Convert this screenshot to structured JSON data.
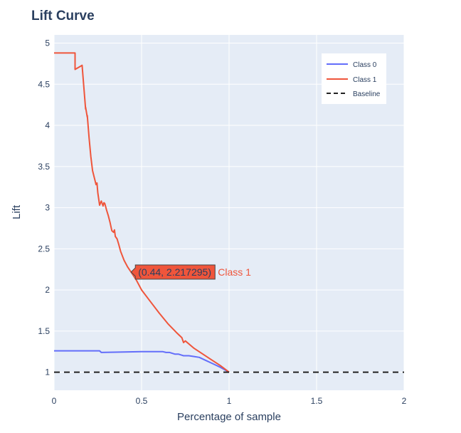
{
  "colors": {
    "plot_bg": "#e5ecf6",
    "grid": "#ffffff",
    "text": "#2a3f5f",
    "class0": "#636efa",
    "class1": "#ef553b",
    "baseline": "#222222"
  },
  "hover": {
    "point_label": "(0.44, 2.217295)",
    "series_label": "Class 1"
  },
  "chart_data": {
    "type": "line",
    "title": "Lift Curve",
    "xlabel": "Percentage of sample",
    "ylabel": "Lift",
    "xlim": [
      0,
      2
    ],
    "ylim": [
      0.78,
      5.1
    ],
    "x_ticks": [
      0,
      0.5,
      1,
      1.5,
      2
    ],
    "x_tick_labels": [
      "0",
      "0.5",
      "1",
      "1.5",
      "2"
    ],
    "y_ticks": [
      1,
      1.5,
      2,
      2.5,
      3,
      3.5,
      4,
      4.5,
      5
    ],
    "y_tick_labels": [
      "1",
      "1.5",
      "2",
      "2.5",
      "3",
      "3.5",
      "4",
      "4.5",
      "5"
    ],
    "grid": true,
    "legend_position": "top-right",
    "series": [
      {
        "name": "Class 0",
        "color": "#636efa",
        "dash": "solid",
        "x": [
          0,
          0.26,
          0.27,
          0.4,
          0.5,
          0.62,
          0.64,
          0.66,
          0.69,
          0.71,
          0.74,
          0.77,
          0.8,
          0.83,
          0.86,
          0.9,
          0.95,
          1.0
        ],
        "y": [
          1.26,
          1.26,
          1.24,
          1.245,
          1.25,
          1.25,
          1.24,
          1.24,
          1.22,
          1.22,
          1.2,
          1.2,
          1.19,
          1.18,
          1.15,
          1.11,
          1.06,
          1.0
        ]
      },
      {
        "name": "Class 1",
        "color": "#ef553b",
        "dash": "solid",
        "x": [
          0,
          0.12,
          0.12,
          0.16,
          0.18,
          0.18,
          0.19,
          0.19,
          0.2,
          0.21,
          0.22,
          0.24,
          0.245,
          0.25,
          0.26,
          0.27,
          0.28,
          0.285,
          0.29,
          0.3,
          0.31,
          0.32,
          0.33,
          0.34,
          0.345,
          0.35,
          0.36,
          0.37,
          0.38,
          0.4,
          0.42,
          0.44,
          0.47,
          0.5,
          0.55,
          0.6,
          0.65,
          0.7,
          0.73,
          0.74,
          0.75,
          0.8,
          0.85,
          0.9,
          0.95,
          1.0
        ],
        "y": [
          4.88,
          4.88,
          4.68,
          4.73,
          4.2,
          4.22,
          4.1,
          4.12,
          3.85,
          3.62,
          3.45,
          3.28,
          3.3,
          3.18,
          3.03,
          3.08,
          3.02,
          3.06,
          3.05,
          2.97,
          2.9,
          2.82,
          2.72,
          2.7,
          2.73,
          2.65,
          2.62,
          2.55,
          2.47,
          2.36,
          2.28,
          2.217295,
          2.12,
          2.0,
          1.86,
          1.72,
          1.59,
          1.48,
          1.42,
          1.36,
          1.38,
          1.29,
          1.22,
          1.15,
          1.08,
          1.0
        ]
      },
      {
        "name": "Baseline",
        "color": "#222222",
        "dash": "dash",
        "x": [
          0,
          2
        ],
        "y": [
          1,
          1
        ]
      }
    ],
    "hover_point": {
      "x": 0.44,
      "y": 2.217295,
      "series": "Class 1"
    }
  }
}
